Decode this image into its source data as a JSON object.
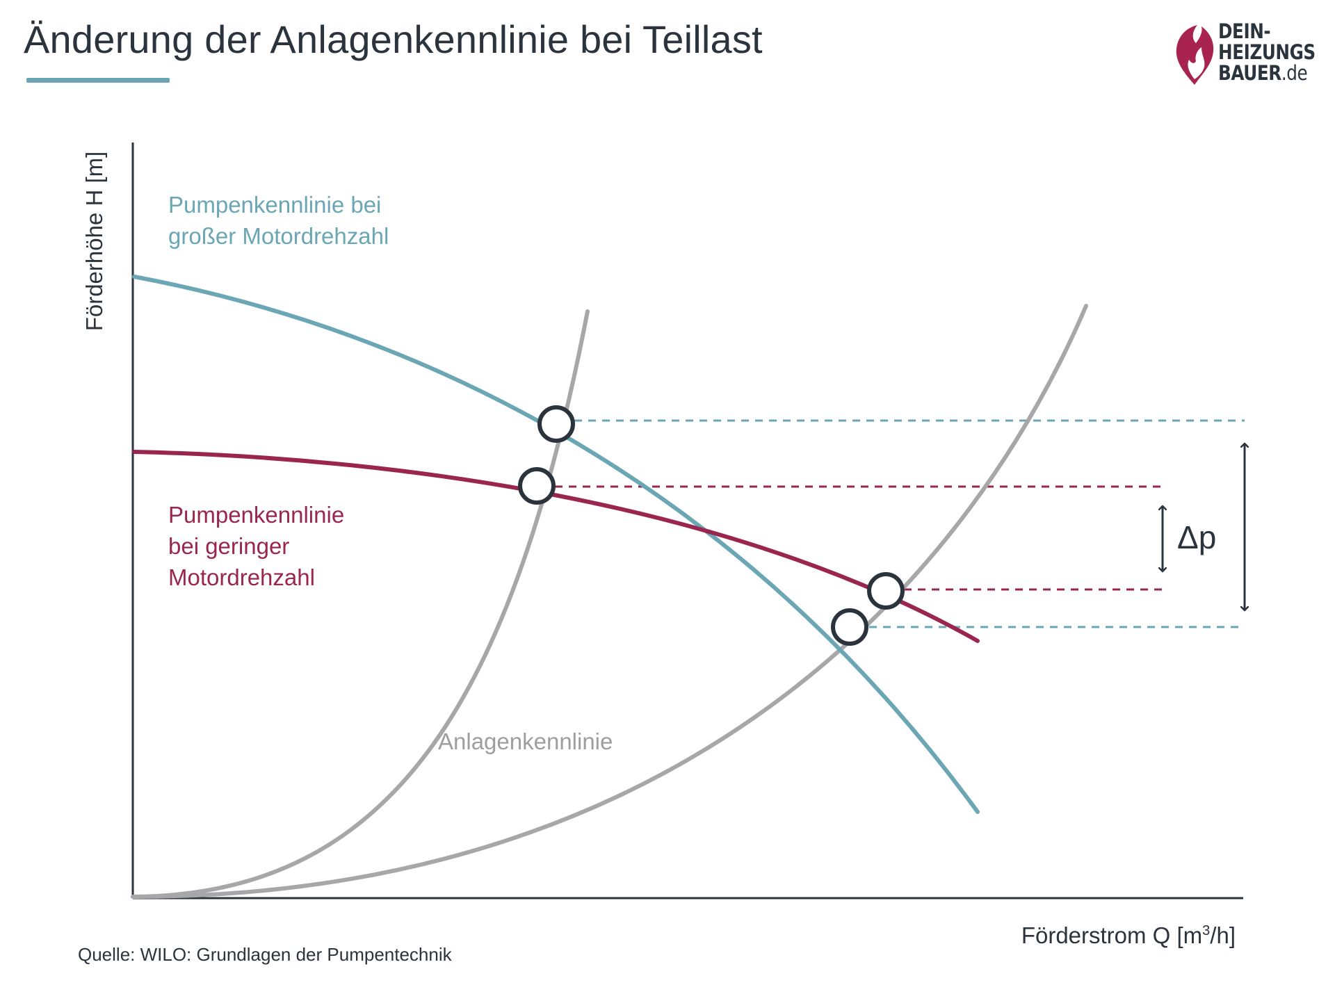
{
  "title": "Änderung der Anlagenkennlinie bei Teillast",
  "logo": {
    "line1": "DEIN-",
    "line2": "HEIZUNGS",
    "line3_main": "BAUER",
    "line3_suffix": ".de"
  },
  "axes": {
    "y_label": "Förderhöhe H [m]",
    "x_label_main": "Förderstrom Q [m",
    "x_label_sup": "3",
    "x_label_end": "/h]"
  },
  "labels": {
    "pump_high_line1": "Pumpenkennlinie bei",
    "pump_high_line2": "großer Motordrehzahl",
    "pump_low_line1": "Pumpenkennlinie",
    "pump_low_line2": "bei geringer",
    "pump_low_line3": "Motordrehzahl",
    "system_curve": "Anlagenkennlinie",
    "delta_p": "Δp"
  },
  "source": "Quelle: WILO: Grundlagen der Pumpentechnik",
  "colors": {
    "pump_high": "#6aa6b4",
    "pump_low": "#9a2650",
    "system_curve": "#a7a7aa",
    "text": "#2b333d",
    "logo_accent": "#a8234f"
  },
  "operating_points": [
    {
      "curve_pair": "steep system / high speed"
    },
    {
      "curve_pair": "steep system / low speed"
    },
    {
      "curve_pair": "flat system / low speed"
    },
    {
      "curve_pair": "flat system / high speed"
    }
  ]
}
